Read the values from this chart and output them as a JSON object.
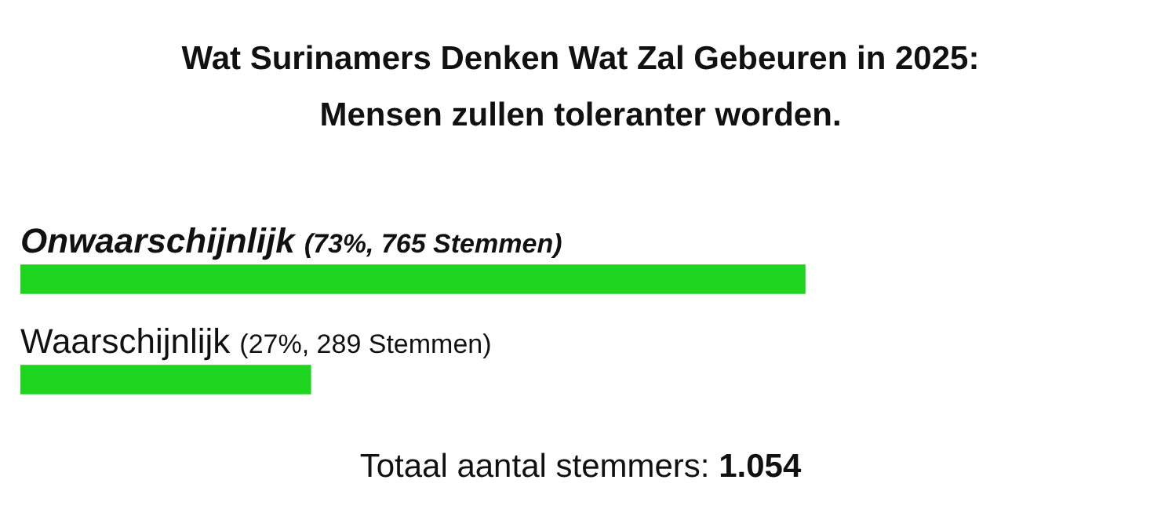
{
  "chart_data": {
    "type": "bar",
    "orientation": "horizontal",
    "title": "Wat Surinamers Denken Wat Zal Gebeuren in 2025: Mensen zullen toleranter worden.",
    "categories": [
      "Onwaarschijnlijk",
      "Waarschijnlijk"
    ],
    "values": [
      73,
      27
    ],
    "value_labels": [
      "(73%, 765 Stemmen)",
      "(27%, 289 Stemmen)"
    ],
    "color": "#1ed41e",
    "legend": false,
    "annotations": [
      "Totaal aantal stemmers: 1.054"
    ]
  }
}
